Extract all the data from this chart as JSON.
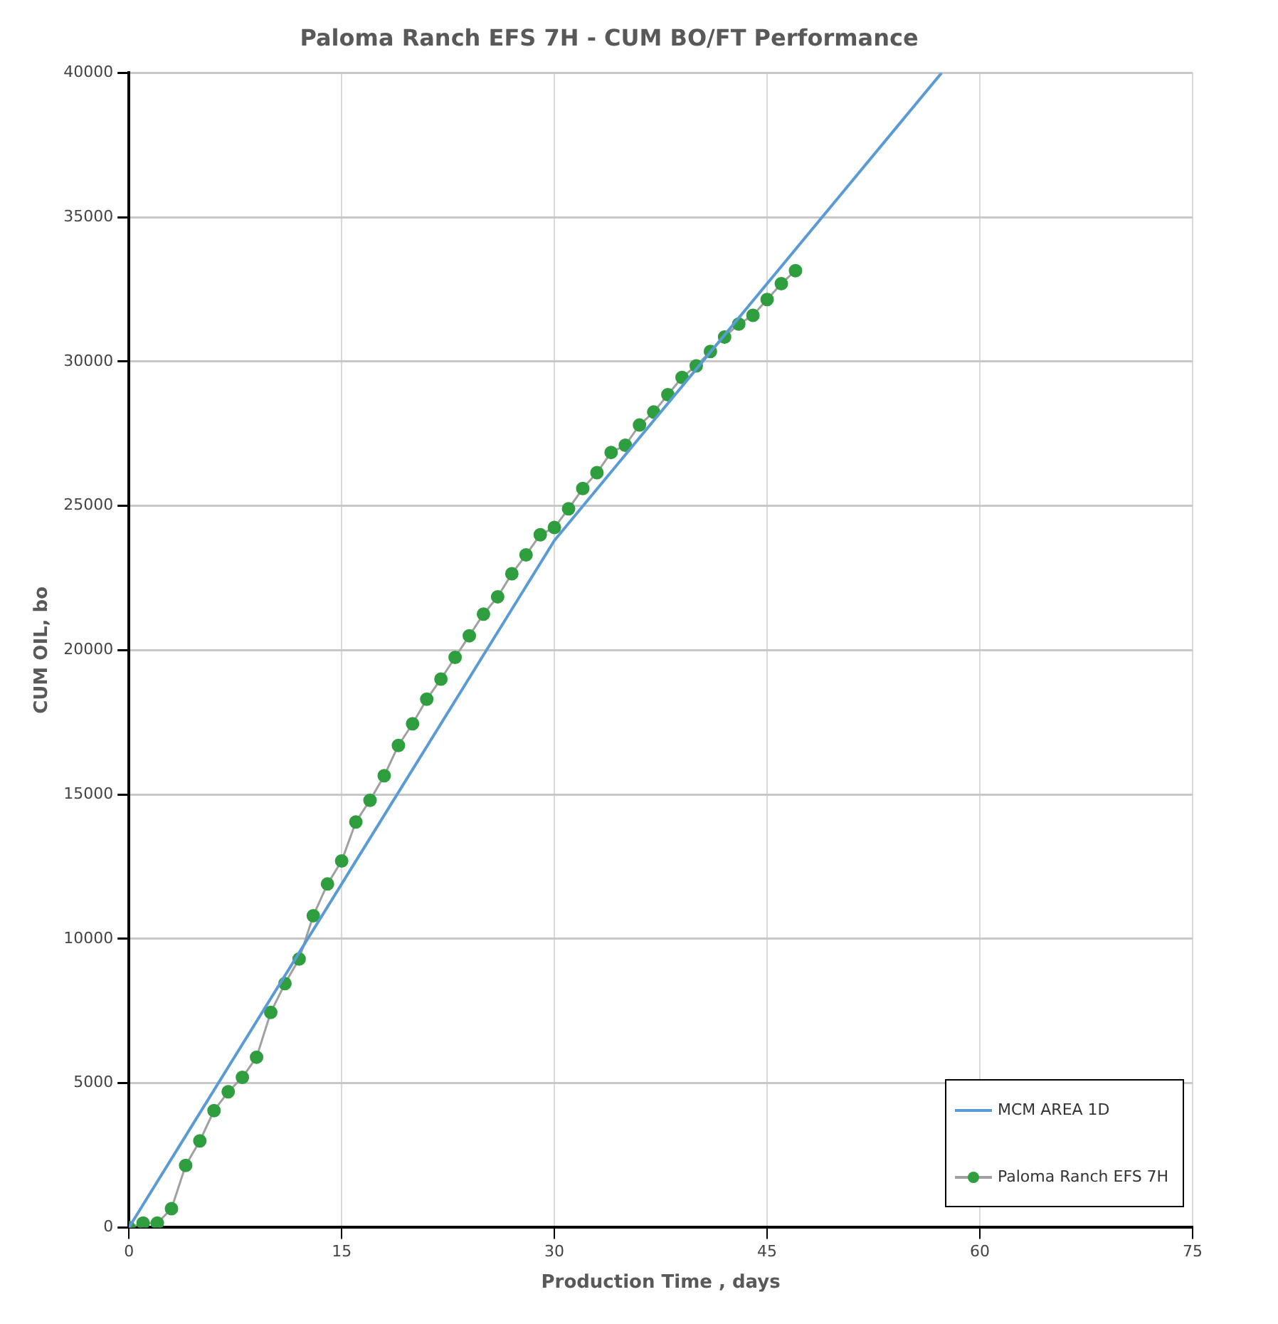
{
  "chart_data": {
    "type": "line",
    "title": "Paloma Ranch EFS 7H - CUM BO/FT Performance",
    "xlabel": "Production Time , days",
    "ylabel": "CUM OIL, bo",
    "xlim": [
      0,
      75
    ],
    "xticks": [
      0,
      15,
      30,
      45,
      60,
      75
    ],
    "ylim": [
      0,
      40000
    ],
    "yticks": [
      0,
      5000,
      10000,
      15000,
      20000,
      25000,
      30000,
      35000,
      40000
    ],
    "grid": true,
    "legend": "bottom right",
    "series": [
      {
        "name": "MCM AREA 1D",
        "color": "#5b9bd5",
        "marker": "none",
        "x": [
          0,
          30,
          57.3
        ],
        "values": [
          0,
          23800,
          40000
        ]
      },
      {
        "name": "Paloma Ranch EFS 7H",
        "color": "#2e9e3e",
        "marker": "circle",
        "x": [
          0,
          1,
          2,
          3,
          4,
          5,
          6,
          7,
          8,
          9,
          10,
          11,
          12,
          13,
          14,
          15,
          16,
          17,
          18,
          19,
          20,
          21,
          22,
          23,
          24,
          25,
          26,
          27,
          28,
          29,
          30,
          31,
          32,
          33,
          34,
          35,
          36,
          37,
          38,
          39,
          40,
          41,
          42,
          43,
          44,
          45,
          46,
          47
        ],
        "values": [
          0,
          150,
          150,
          650,
          2150,
          3000,
          4050,
          4700,
          5200,
          5900,
          7450,
          8450,
          9300,
          10800,
          11900,
          12700,
          14050,
          14800,
          15650,
          16700,
          17450,
          18300,
          19000,
          19750,
          20500,
          21250,
          21850,
          22650,
          23300,
          24000,
          24250,
          24900,
          25600,
          26150,
          26850,
          27100,
          27800,
          28250,
          28850,
          29450,
          29850,
          30350,
          30850,
          31300,
          31600,
          32150,
          32700,
          33150
        ]
      }
    ]
  }
}
